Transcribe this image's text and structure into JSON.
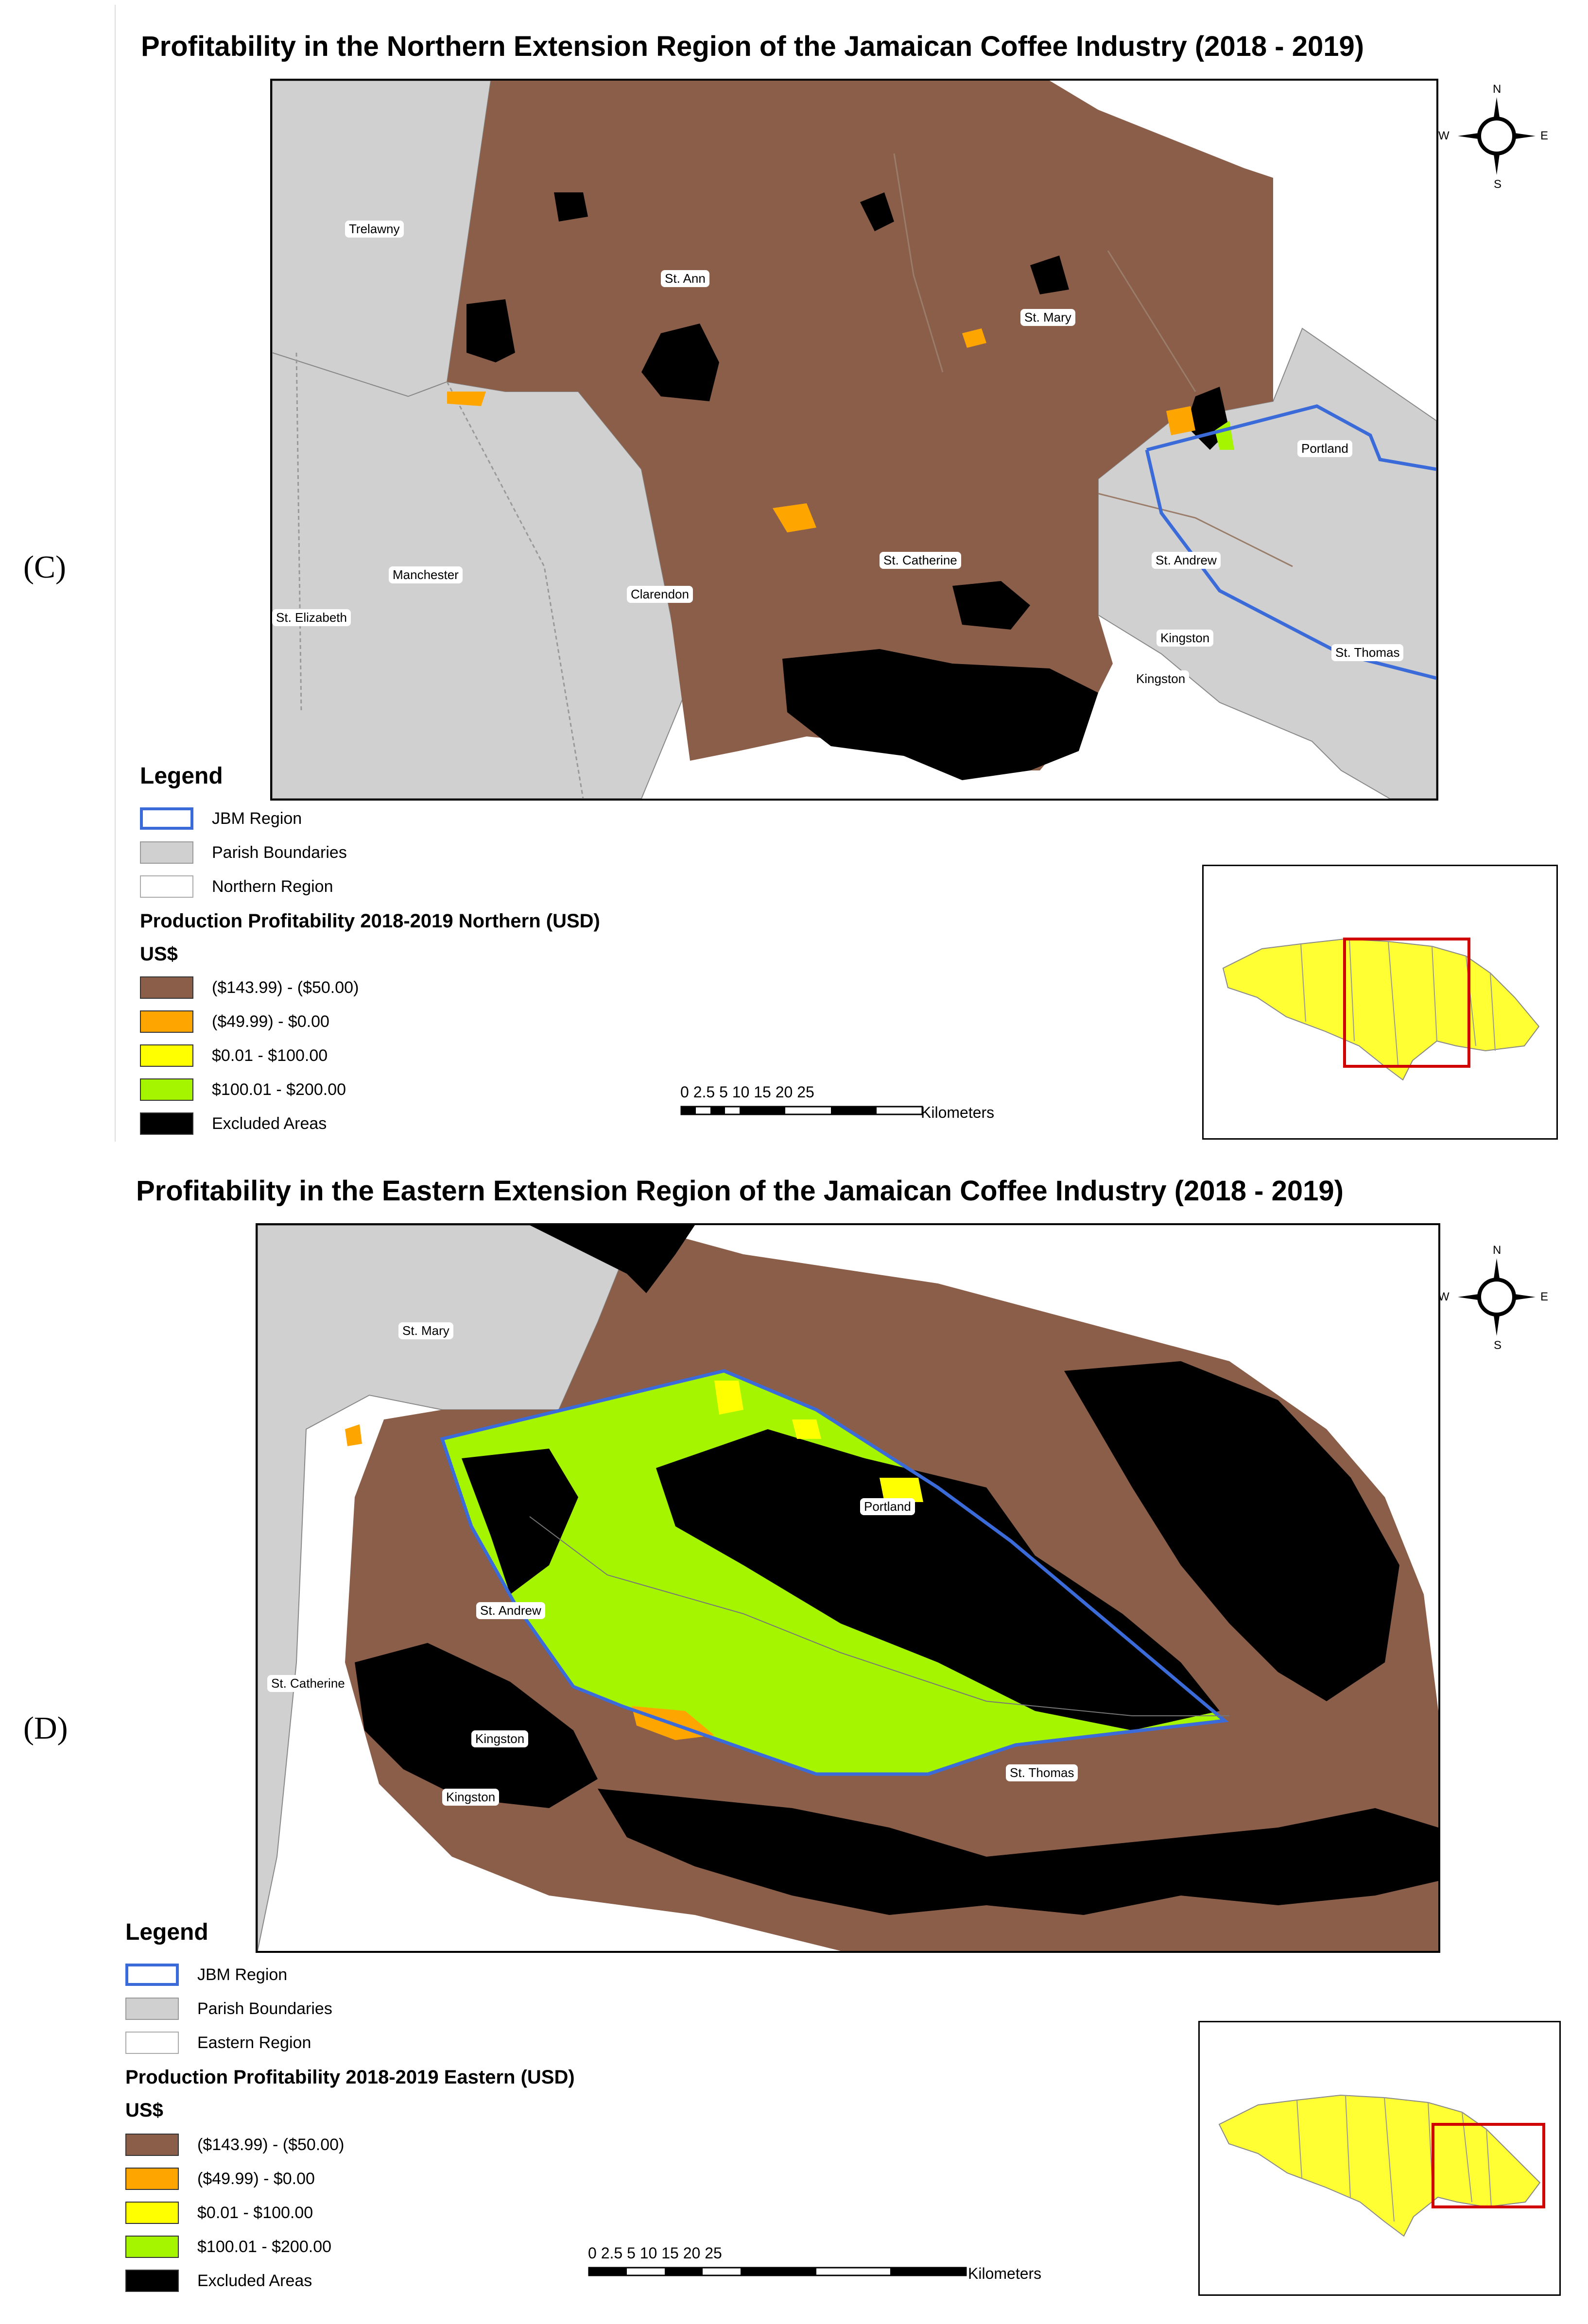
{
  "panels": [
    {
      "tag": "(C)",
      "title": "Profitability in the Northern Extension Region of the Jamaican Coffee Industry (2018 - 2019)",
      "legend": {
        "heading": "Legend",
        "items": [
          {
            "label": "JBM Region"
          },
          {
            "label": "Parish Boundaries"
          },
          {
            "label": "Northern Region"
          }
        ],
        "subheading": "Production Profitability 2018-2019 Northern (USD)",
        "unit": "US$",
        "classes": [
          {
            "label": "($143.99) - ($50.00)",
            "color": "#8B5E4A"
          },
          {
            "label": "($49.99) - $0.00",
            "color": "#FFA500"
          },
          {
            "label": "$0.01 - $100.00",
            "color": "#FFFF00"
          },
          {
            "label": "$100.01 - $200.00",
            "color": "#A6F500"
          },
          {
            "label": "Excluded Areas",
            "color": "#000000"
          }
        ]
      },
      "parishes": [
        "Trelawny",
        "St. Ann",
        "St. Mary",
        "Portland",
        "Manchester",
        "St. Elizabeth",
        "Clarendon",
        "St. Catherine",
        "St. Andrew",
        "Kingston",
        "Kingston",
        "St. Thomas"
      ],
      "compass": {
        "n": "N",
        "s": "S",
        "e": "E",
        "w": "W"
      },
      "scale": {
        "ticks": "0 2.5 5      10      15      20      25",
        "unit": "Kilometers"
      }
    },
    {
      "tag": "(D)",
      "title": "Profitability in the Eastern Extension Region of the Jamaican Coffee Industry (2018 - 2019)",
      "legend": {
        "heading": "Legend",
        "items": [
          {
            "label": "JBM Region"
          },
          {
            "label": "Parish Boundaries"
          },
          {
            "label": "Eastern Region"
          }
        ],
        "subheading": "Production Profitability 2018-2019 Eastern (USD)",
        "unit": "US$",
        "classes": [
          {
            "label": "($143.99) - ($50.00)",
            "color": "#8B5E4A"
          },
          {
            "label": "($49.99) - $0.00",
            "color": "#FFA500"
          },
          {
            "label": "$0.01 - $100.00",
            "color": "#FFFF00"
          },
          {
            "label": "$100.01 - $200.00",
            "color": "#A6F500"
          },
          {
            "label": "Excluded Areas",
            "color": "#000000"
          }
        ]
      },
      "parishes": [
        "St. Mary",
        "Portland",
        "St. Andrew",
        "St. Catherine",
        "Kingston",
        "Kingston",
        "St. Thomas"
      ],
      "compass": {
        "n": "N",
        "s": "S",
        "e": "E",
        "w": "W"
      },
      "scale": {
        "ticks": "0    2.5    5          10          15          20          25",
        "unit": "Kilometers"
      }
    }
  ],
  "colors": {
    "jbm": "#3A6BD8",
    "parish": "#D0D0D0",
    "inset_island": "#FFFF33",
    "inset_box": "#D00000"
  }
}
